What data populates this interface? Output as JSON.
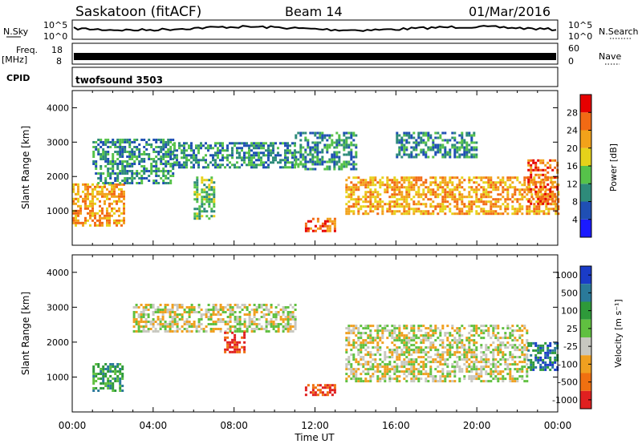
{
  "header": {
    "station": "Saskatoon (fitACF)",
    "beam": "Beam 14",
    "date": "01/Mar/2016"
  },
  "strips": {
    "nsky_label": "N.Sky",
    "nsky_ticks": [
      "10^5",
      "10^0"
    ],
    "nsearch_label": "N.Search",
    "freq_label_1": "Freq.",
    "freq_label_2": "[MHz]",
    "freq_ticks": [
      "18",
      "8"
    ],
    "nave_label": "Nave",
    "nave_ticks": [
      "60",
      "0"
    ],
    "cpid_label": "CPID",
    "cpid_value": "twofsound 3503"
  },
  "chart_data": [
    {
      "type": "heatmap",
      "name": "power",
      "xlabel": "Time UT",
      "ylabel": "Slant Range [km]",
      "x_range_hours": [
        0,
        24
      ],
      "ylim": [
        0,
        4500
      ],
      "y_ticks": [
        1000,
        2000,
        3000,
        4000
      ],
      "colorbar": {
        "label": "Power [dB]",
        "ticks": [
          "4",
          "8",
          "12",
          "16",
          "20",
          "24",
          "28"
        ],
        "colors": [
          "#1a1aff",
          "#1f4fb4",
          "#2e8b7a",
          "#56c24a",
          "#e6d21a",
          "#f2a21a",
          "#f26a14",
          "#e60000"
        ]
      },
      "regions": [
        {
          "t": [
            0.0,
            2.5
          ],
          "r": [
            600,
            1800
          ],
          "level": 20
        },
        {
          "t": [
            1.0,
            5.0
          ],
          "r": [
            1800,
            3100
          ],
          "level": 8
        },
        {
          "t": [
            5.0,
            11.0
          ],
          "r": [
            2300,
            3000
          ],
          "level": 8
        },
        {
          "t": [
            6.0,
            7.0
          ],
          "r": [
            800,
            2000
          ],
          "level": 12
        },
        {
          "t": [
            11.0,
            14.0
          ],
          "r": [
            2200,
            3300
          ],
          "level": 8
        },
        {
          "t": [
            11.5,
            13.0
          ],
          "r": [
            400,
            800
          ],
          "level": 24
        },
        {
          "t": [
            13.5,
            24.0
          ],
          "r": [
            900,
            2000
          ],
          "level": 20
        },
        {
          "t": [
            16.0,
            20.0
          ],
          "r": [
            2600,
            3300
          ],
          "level": 8
        },
        {
          "t": [
            22.5,
            24.0
          ],
          "r": [
            1200,
            2500
          ],
          "level": 24
        }
      ]
    },
    {
      "type": "heatmap",
      "name": "velocity",
      "xlabel": "Time UT",
      "ylabel": "Slant Range [km]",
      "x_range_hours": [
        0,
        24
      ],
      "x_ticks": [
        "00:00",
        "04:00",
        "08:00",
        "12:00",
        "16:00",
        "20:00",
        "00:00"
      ],
      "ylim": [
        0,
        4500
      ],
      "y_ticks": [
        1000,
        2000,
        3000,
        4000
      ],
      "colorbar": {
        "label": "Velocity [m s⁻¹]",
        "ticks": [
          "1000",
          "500",
          "100",
          "25",
          "-25",
          "-100",
          "-500",
          "-1000"
        ],
        "colors": [
          "#1a3cc8",
          "#2a7a9a",
          "#2e9a3a",
          "#60c040",
          "#c8c8c0",
          "#f0a020",
          "#f07010",
          "#e02020"
        ]
      },
      "regions": [
        {
          "t": [
            1.0,
            2.5
          ],
          "r": [
            600,
            1400
          ],
          "level": 100
        },
        {
          "t": [
            3.0,
            11.0
          ],
          "r": [
            2300,
            3100
          ],
          "level": 0
        },
        {
          "t": [
            7.5,
            8.5
          ],
          "r": [
            1700,
            2300
          ],
          "level": -300
        },
        {
          "t": [
            11.5,
            13.0
          ],
          "r": [
            500,
            800
          ],
          "level": -300
        },
        {
          "t": [
            13.5,
            22.5
          ],
          "r": [
            900,
            2500
          ],
          "level": 0
        },
        {
          "t": [
            22.5,
            24.0
          ],
          "r": [
            1200,
            2000
          ],
          "level": 500
        }
      ]
    }
  ]
}
